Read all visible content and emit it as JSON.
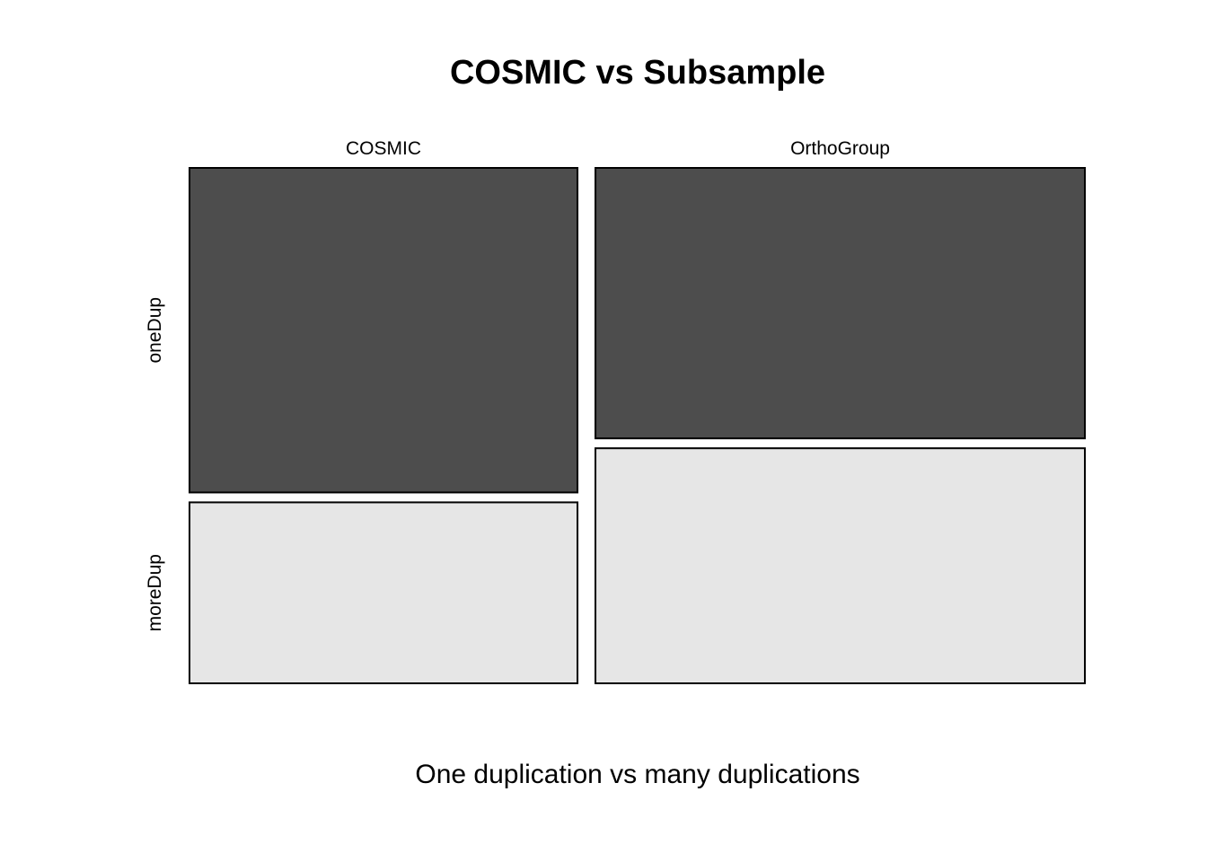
{
  "chart_data": {
    "type": "mosaic",
    "title": "COSMIC vs Subsample",
    "xlabel": "One duplication vs many duplications",
    "ylabel": "",
    "columns": [
      "COSMIC",
      "OrthoGroup"
    ],
    "column_proportions": [
      0.4422,
      0.5578
    ],
    "rows": [
      "oneDup",
      "moreDup"
    ],
    "colors": {
      "oneDup": "#4d4d4d",
      "moreDup": "#e6e6e6"
    },
    "cells": [
      {
        "column": "COSMIC",
        "row": "oneDup",
        "proportion": 0.642
      },
      {
        "column": "COSMIC",
        "row": "moreDup",
        "proportion": 0.358
      },
      {
        "column": "OrthoGroup",
        "row": "oneDup",
        "proportion": 0.535
      },
      {
        "column": "OrthoGroup",
        "row": "moreDup",
        "proportion": 0.465
      }
    ],
    "grid": false,
    "legend": "none"
  }
}
